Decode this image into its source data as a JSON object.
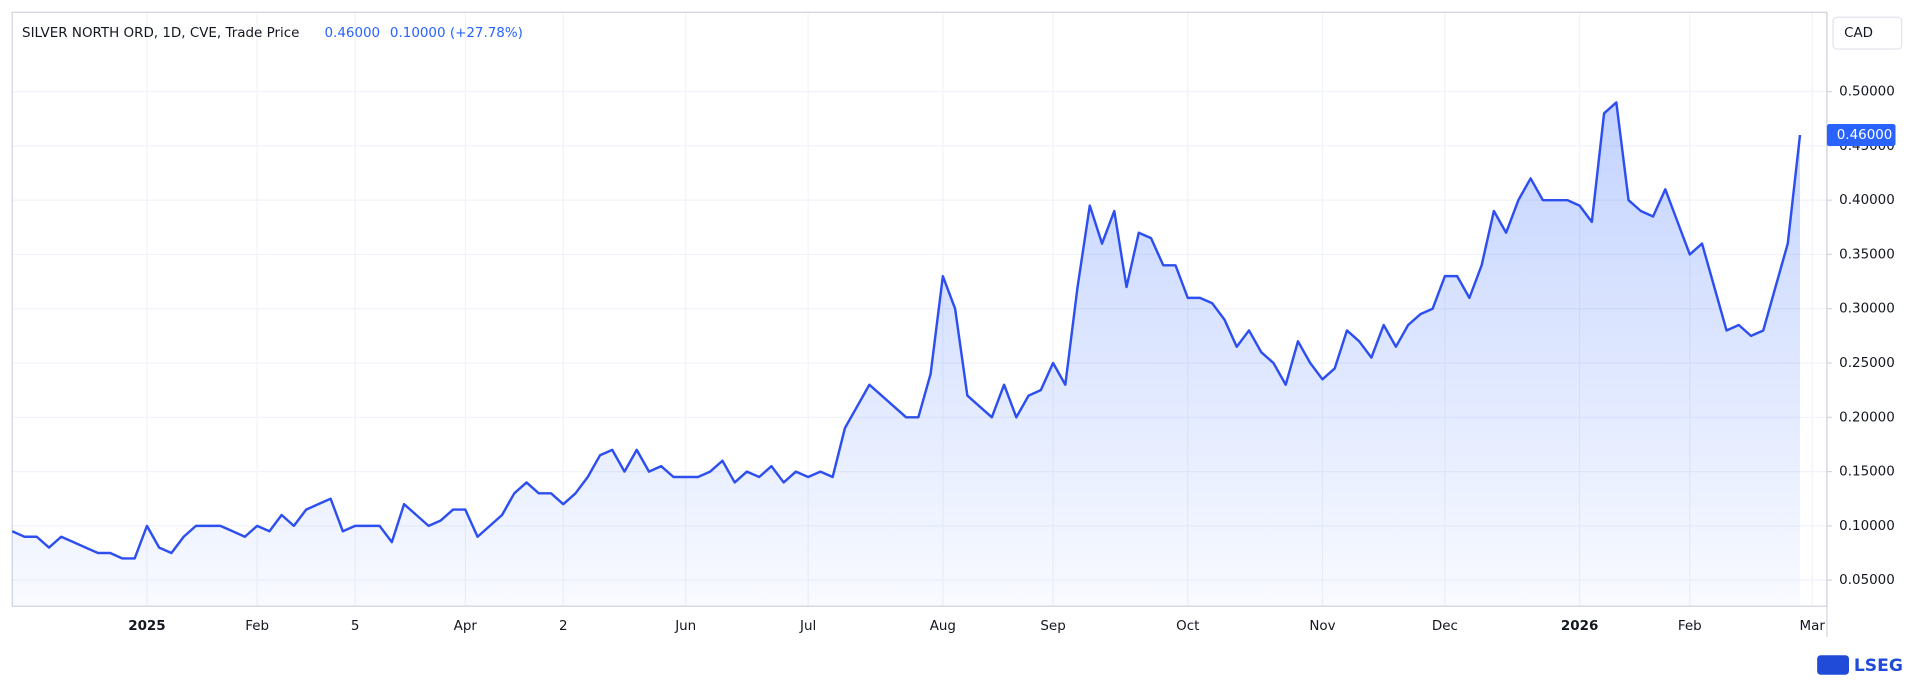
{
  "chart_data": {
    "type": "area",
    "title": "SILVER NORTH ORD, 1D, CVE, Trade Price",
    "header_price": "0.46000",
    "header_change": "0.10000 (+27.78%)",
    "currency": "CAD",
    "logo": "LSEG",
    "color": "#2e4ff0",
    "grid": true,
    "ylim": [
      0.026,
      0.573
    ],
    "yticks": [
      {
        "value": 0.05,
        "label": "0.05000"
      },
      {
        "value": 0.1,
        "label": "0.10000"
      },
      {
        "value": 0.15,
        "label": "0.15000"
      },
      {
        "value": 0.2,
        "label": "0.20000"
      },
      {
        "value": 0.25,
        "label": "0.25000"
      },
      {
        "value": 0.3,
        "label": "0.30000"
      },
      {
        "value": 0.35,
        "label": "0.35000"
      },
      {
        "value": 0.4,
        "label": "0.40000"
      },
      {
        "value": 0.45,
        "label": "0.45000"
      },
      {
        "value": 0.5,
        "label": "0.50000"
      }
    ],
    "price_tag": {
      "value": 0.46,
      "label": "0.46000"
    },
    "categories": [
      null,
      null,
      null,
      null,
      null,
      null,
      null,
      null,
      null,
      null,
      null,
      "2025",
      null,
      null,
      null,
      null,
      null,
      null,
      null,
      null,
      "Feb",
      null,
      null,
      null,
      null,
      null,
      null,
      null,
      "5",
      null,
      null,
      null,
      null,
      null,
      null,
      null,
      null,
      "Apr",
      null,
      null,
      null,
      null,
      null,
      null,
      null,
      "2",
      null,
      null,
      null,
      null,
      null,
      null,
      null,
      null,
      null,
      "Jun",
      null,
      null,
      null,
      null,
      null,
      null,
      null,
      null,
      null,
      "Jul",
      null,
      null,
      null,
      null,
      null,
      null,
      null,
      null,
      null,
      null,
      "Aug",
      null,
      null,
      null,
      null,
      null,
      null,
      null,
      null,
      "Sep",
      null,
      null,
      null,
      null,
      null,
      null,
      null,
      null,
      null,
      null,
      "Oct",
      null,
      null,
      null,
      null,
      null,
      null,
      null,
      null,
      null,
      null,
      "Nov",
      null,
      null,
      null,
      null,
      null,
      null,
      null,
      null,
      null,
      "Dec",
      null,
      null,
      null,
      null,
      null,
      null,
      null,
      null,
      null,
      null,
      "2026",
      null,
      null,
      null,
      null,
      null,
      null,
      null,
      null,
      "Feb",
      null,
      null,
      null,
      null,
      null,
      null,
      null,
      null,
      null,
      "Mar"
    ],
    "values": [
      0.095,
      0.09,
      0.09,
      0.08,
      0.09,
      0.085,
      0.08,
      0.075,
      0.075,
      0.07,
      0.07,
      0.1,
      0.08,
      0.075,
      0.09,
      0.1,
      0.1,
      0.1,
      0.095,
      0.09,
      0.1,
      0.095,
      0.11,
      0.1,
      0.115,
      0.12,
      0.125,
      0.095,
      0.1,
      0.1,
      0.1,
      0.085,
      0.12,
      0.11,
      0.1,
      0.105,
      0.115,
      0.115,
      0.09,
      0.1,
      0.11,
      0.13,
      0.14,
      0.13,
      0.13,
      0.12,
      0.13,
      0.145,
      0.165,
      0.17,
      0.15,
      0.17,
      0.15,
      0.155,
      0.145,
      0.145,
      0.145,
      0.15,
      0.16,
      0.14,
      0.15,
      0.145,
      0.155,
      0.14,
      0.15,
      0.145,
      0.15,
      0.145,
      0.19,
      0.21,
      0.23,
      0.22,
      0.21,
      0.2,
      0.2,
      0.24,
      0.33,
      0.3,
      0.22,
      0.21,
      0.2,
      0.23,
      0.2,
      0.22,
      0.225,
      0.25,
      0.23,
      0.32,
      0.395,
      0.36,
      0.39,
      0.32,
      0.37,
      0.365,
      0.34,
      0.34,
      0.31,
      0.31,
      0.305,
      0.29,
      0.265,
      0.28,
      0.26,
      0.25,
      0.23,
      0.27,
      0.25,
      0.235,
      0.245,
      0.28,
      0.27,
      0.255,
      0.285,
      0.265,
      0.285,
      0.295,
      0.3,
      0.33,
      0.33,
      0.31,
      0.34,
      0.39,
      0.37,
      0.4,
      0.42,
      0.4,
      0.4,
      0.4,
      0.395,
      0.38,
      0.48,
      0.49,
      0.4,
      0.39,
      0.385,
      0.41,
      0.38,
      0.35,
      0.36,
      0.32,
      0.28,
      0.285,
      0.275,
      0.28,
      0.32,
      0.36,
      0.46,
      null
    ]
  }
}
